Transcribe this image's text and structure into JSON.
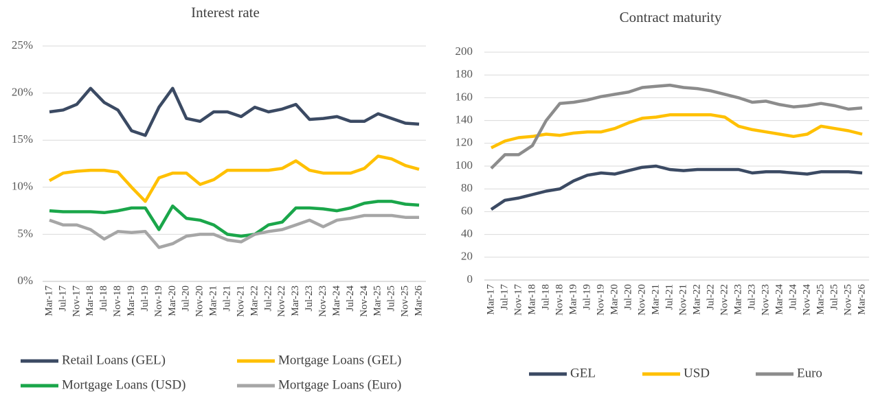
{
  "chart_data": [
    {
      "type": "line",
      "title": "Interest rate",
      "categories": [
        "Mar-17",
        "Jul-17",
        "Nov-17",
        "Mar-18",
        "Jul-18",
        "Nov-18",
        "Mar-19",
        "Jul-19",
        "Nov-19",
        "Mar-20",
        "Jul-20",
        "Nov-20",
        "Mar-21",
        "Jul-21",
        "Nov-21",
        "Mar-22",
        "Jul-22",
        "Nov-22",
        "Mar-23",
        "Jul-23",
        "Nov-23",
        "Mar-24",
        "Jul-24",
        "Nov-24",
        "Mar-25",
        "Jul-25",
        "Nov-25",
        "Mar-26"
      ],
      "series": [
        {
          "name": "Retail Loans (GEL)",
          "color": "#3b4a63",
          "values": [
            18,
            18.2,
            18.8,
            20.5,
            19,
            18.2,
            16,
            15.5,
            18.5,
            20.5,
            17.3,
            17,
            18,
            18,
            17.5,
            18.5,
            18,
            18.3,
            18.8,
            17.2,
            17.3,
            17.5,
            17,
            17,
            17.8,
            17.3,
            16.8,
            16.7
          ]
        },
        {
          "name": "Mortgage Loans (GEL)",
          "color": "#ffc000",
          "values": [
            10.7,
            11.5,
            11.7,
            11.8,
            11.8,
            11.6,
            10,
            8.5,
            11,
            11.5,
            11.5,
            10.3,
            10.8,
            11.8,
            11.8,
            11.8,
            11.8,
            12,
            12.8,
            11.8,
            11.5,
            11.5,
            11.5,
            12,
            13.3,
            13,
            12.3,
            11.9
          ]
        },
        {
          "name": "Mortgage Loans (USD)",
          "color": "#1aa64a",
          "values": [
            7.5,
            7.4,
            7.4,
            7.4,
            7.3,
            7.5,
            7.8,
            7.8,
            5.5,
            8,
            6.7,
            6.5,
            6,
            5,
            4.8,
            5,
            6,
            6.3,
            7.8,
            7.8,
            7.7,
            7.5,
            7.8,
            8.3,
            8.5,
            8.5,
            8.2,
            8.1
          ]
        },
        {
          "name": "Mortgage Loans (Euro)",
          "color": "#a6a6a6",
          "values": [
            6.5,
            6,
            6,
            5.5,
            4.5,
            5.3,
            5.2,
            5.3,
            3.6,
            4,
            4.8,
            5,
            5,
            4.4,
            4.2,
            5,
            5.3,
            5.5,
            6,
            6.5,
            5.8,
            6.5,
            6.7,
            7,
            7,
            7,
            6.8,
            6.8
          ]
        }
      ],
      "ylim": [
        0,
        25
      ],
      "yticks": [
        {
          "value": 0,
          "label": "0%"
        },
        {
          "value": 5,
          "label": "5%"
        },
        {
          "value": 10,
          "label": "10%"
        },
        {
          "value": 15,
          "label": "15%"
        },
        {
          "value": 20,
          "label": "20%"
        },
        {
          "value": 25,
          "label": "25%"
        }
      ],
      "grid": true,
      "legend": "bottom"
    },
    {
      "type": "line",
      "title": "Contract maturity",
      "categories": [
        "Mar-17",
        "Jul-17",
        "Nov-17",
        "Mar-18",
        "Jul-18",
        "Nov-18",
        "Mar-19",
        "Jul-19",
        "Nov-19",
        "Mar-20",
        "Jul-20",
        "Nov-20",
        "Mar-21",
        "Jul-21",
        "Nov-21",
        "Mar-22",
        "Jul-22",
        "Nov-22",
        "Mar-23",
        "Jul-23",
        "Nov-23",
        "Mar-24",
        "Jul-24",
        "Nov-24",
        "Mar-25",
        "Jul-25",
        "Nov-25",
        "Mar-26"
      ],
      "series": [
        {
          "name": "GEL",
          "color": "#3b4a63",
          "values": [
            62,
            70,
            72,
            75,
            78,
            80,
            87,
            92,
            94,
            93,
            96,
            99,
            100,
            97,
            96,
            97,
            97,
            97,
            97,
            94,
            95,
            95,
            94,
            93,
            95,
            95,
            95,
            94
          ]
        },
        {
          "name": "USD",
          "color": "#ffc000",
          "values": [
            116,
            122,
            125,
            126,
            128,
            127,
            129,
            130,
            130,
            133,
            138,
            142,
            143,
            145,
            145,
            145,
            145,
            143,
            135,
            132,
            130,
            128,
            126,
            128,
            135,
            133,
            131,
            128
          ]
        },
        {
          "name": "Euro",
          "color": "#8c8c8c",
          "values": [
            98,
            110,
            110,
            118,
            140,
            155,
            156,
            158,
            161,
            163,
            165,
            169,
            170,
            171,
            169,
            168,
            166,
            163,
            160,
            156,
            157,
            154,
            152,
            153,
            155,
            153,
            150,
            151
          ]
        }
      ],
      "ylim": [
        0,
        200
      ],
      "yticks": [
        0,
        20,
        40,
        60,
        80,
        100,
        120,
        140,
        160,
        180,
        200
      ],
      "grid": true,
      "legend": "bottom"
    }
  ]
}
